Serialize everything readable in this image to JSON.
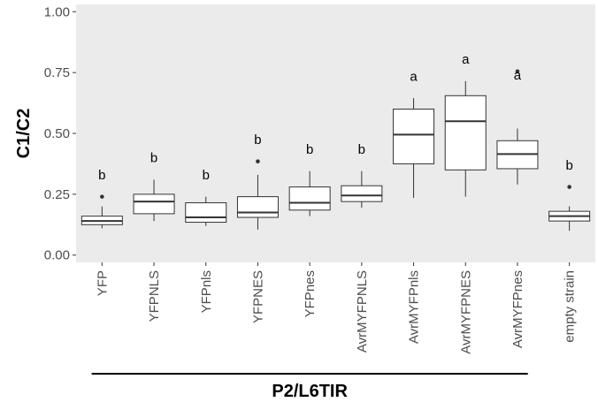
{
  "chart_data": {
    "type": "boxplot",
    "title": "",
    "xlabel": "",
    "ylabel": "C1/C2",
    "ylim": [
      -0.03,
      1.03
    ],
    "yticks": [
      "0.00",
      "0.25",
      "0.50",
      "0.75",
      "1.00"
    ],
    "grid": false,
    "categories": [
      "YFP",
      "YFPNLS",
      "YFPnls",
      "YFPNES",
      "YFPnes",
      "AvrMYFPNLS",
      "AvrMYFPnls",
      "AvrMYFPNES",
      "AvrMYFPnes",
      "empty strain"
    ],
    "boxes": [
      {
        "category": "YFP",
        "whisker_low": 0.11,
        "q1": 0.125,
        "median": 0.14,
        "q3": 0.16,
        "whisker_high": 0.2,
        "outliers": [
          0.24
        ],
        "letter": "b"
      },
      {
        "category": "YFPNLS",
        "whisker_low": 0.14,
        "q1": 0.17,
        "median": 0.22,
        "q3": 0.25,
        "whisker_high": 0.31,
        "outliers": [],
        "letter": "b"
      },
      {
        "category": "YFPnls",
        "whisker_low": 0.12,
        "q1": 0.135,
        "median": 0.155,
        "q3": 0.215,
        "whisker_high": 0.24,
        "outliers": [],
        "letter": "b"
      },
      {
        "category": "YFPNES",
        "whisker_low": 0.105,
        "q1": 0.155,
        "median": 0.175,
        "q3": 0.24,
        "whisker_high": 0.33,
        "outliers": [
          0.385
        ],
        "letter": "b"
      },
      {
        "category": "YFPnes",
        "whisker_low": 0.16,
        "q1": 0.185,
        "median": 0.215,
        "q3": 0.28,
        "whisker_high": 0.345,
        "outliers": [],
        "letter": "b"
      },
      {
        "category": "AvrMYFPNLS",
        "whisker_low": 0.195,
        "q1": 0.22,
        "median": 0.245,
        "q3": 0.285,
        "whisker_high": 0.345,
        "outliers": [],
        "letter": "b"
      },
      {
        "category": "AvrMYFPnls",
        "whisker_low": 0.235,
        "q1": 0.375,
        "median": 0.495,
        "q3": 0.6,
        "whisker_high": 0.645,
        "outliers": [],
        "letter": "a"
      },
      {
        "category": "AvrMYFPNES",
        "whisker_low": 0.24,
        "q1": 0.35,
        "median": 0.55,
        "q3": 0.655,
        "whisker_high": 0.715,
        "outliers": [],
        "letter": "a"
      },
      {
        "category": "AvrMYFPnes",
        "whisker_low": 0.29,
        "q1": 0.355,
        "median": 0.415,
        "q3": 0.47,
        "whisker_high": 0.52,
        "outliers": [
          0.755
        ],
        "letter": "a"
      },
      {
        "category": "empty strain",
        "whisker_low": 0.1,
        "q1": 0.14,
        "median": 0.16,
        "q3": 0.18,
        "whisker_high": 0.2,
        "outliers": [
          0.28
        ],
        "letter": "b"
      }
    ],
    "group_label": "P2/L6TIR",
    "group_span": [
      "YFP",
      "AvrMYFPnes"
    ],
    "colors": {
      "panel_background": "#ebebeb",
      "box_fill": "#ffffff",
      "box_stroke": "#333333",
      "tick_text": "#4d4d4d"
    }
  }
}
